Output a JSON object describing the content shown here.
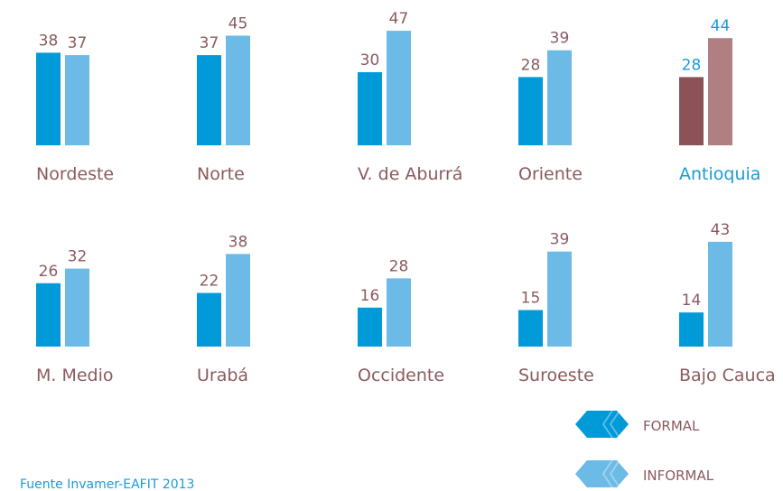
{
  "chart_data": {
    "type": "bar",
    "categories": [
      "Nordeste",
      "Norte",
      "V. de Aburrá",
      "Oriente",
      "Antioquia",
      "M. Medio",
      "Urabá",
      "Occidente",
      "Suroeste",
      "Bajo Cauca"
    ],
    "text_colors": [
      "#8b5a5e",
      "#8b5a5e",
      "#8b5a5e",
      "#8b5a5e",
      "#1a9cd8",
      "#8b5a5e",
      "#8b5a5e",
      "#8b5a5e",
      "#8b5a5e",
      "#8b5a5e"
    ],
    "series": [
      {
        "name": "FORMAL",
        "color": "#009ad9",
        "values": [
          38,
          37,
          30,
          28,
          28,
          26,
          22,
          16,
          15,
          14
        ],
        "colors": [
          "#009ad9",
          "#009ad9",
          "#009ad9",
          "#009ad9",
          "#8b5357",
          "#009ad9",
          "#009ad9",
          "#009ad9",
          "#009ad9",
          "#009ad9"
        ]
      },
      {
        "name": "INFORMAL",
        "color": "#6bbbe6",
        "values": [
          37,
          45,
          47,
          39,
          44,
          32,
          38,
          28,
          39,
          43
        ],
        "colors": [
          "#6bbbe6",
          "#6bbbe6",
          "#6bbbe6",
          "#6bbbe6",
          "#b07f82",
          "#6bbbe6",
          "#6bbbe6",
          "#6bbbe6",
          "#6bbbe6",
          "#6bbbe6"
        ]
      }
    ],
    "ylim": [
      0,
      50
    ],
    "source": "Fuente Invamer-EAFIT 2013"
  }
}
